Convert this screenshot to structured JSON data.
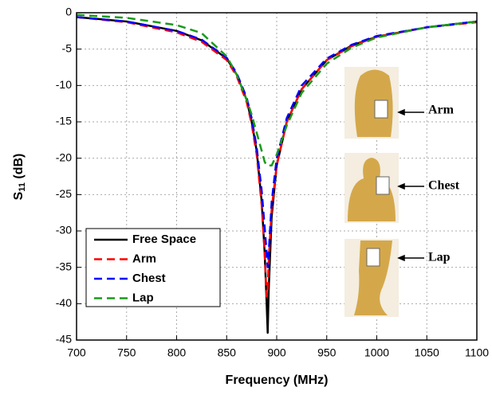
{
  "chart_data": {
    "type": "line",
    "xlabel": "Frequency (MHz)",
    "ylabel": [
      "S",
      "11",
      " (dB)"
    ],
    "x": [
      700,
      750,
      800,
      825,
      850,
      860,
      870,
      875,
      880,
      885,
      888,
      890,
      891,
      892,
      895,
      900,
      910,
      925,
      950,
      975,
      1000,
      1050,
      1100
    ],
    "series": [
      {
        "name": "Free Space",
        "color": "#000000",
        "style": "solid",
        "values": [
          -0.6,
          -1.2,
          -2.5,
          -3.8,
          -6.3,
          -8.5,
          -12,
          -15,
          -19,
          -26,
          -33,
          -40,
          -44,
          -38,
          -28,
          -21,
          -15,
          -10.5,
          -6.5,
          -4.5,
          -3.3,
          -2,
          -1.2
        ]
      },
      {
        "name": "Arm",
        "color": "#ff0000",
        "style": "dashed",
        "values": [
          -0.6,
          -1.3,
          -2.7,
          -4,
          -6.5,
          -8.7,
          -12.3,
          -15.3,
          -19.5,
          -26.5,
          -33,
          -39,
          -38,
          -34,
          -27,
          -21,
          -15,
          -10.5,
          -6.5,
          -4.6,
          -3.3,
          -2,
          -1.3
        ]
      },
      {
        "name": "Chest",
        "color": "#0000ff",
        "style": "dashed",
        "values": [
          -0.6,
          -1.2,
          -2.5,
          -3.7,
          -6.2,
          -8.3,
          -11.7,
          -14.5,
          -18.5,
          -24.5,
          -29.5,
          -33,
          -35,
          -33,
          -26,
          -20,
          -14.5,
          -10,
          -6.3,
          -4.4,
          -3.2,
          -2,
          -1.2
        ]
      },
      {
        "name": "Lap",
        "color": "#1a9a1a",
        "style": "dashed",
        "values": [
          -0.3,
          -0.7,
          -1.7,
          -2.8,
          -6,
          -8.5,
          -12,
          -14,
          -16.5,
          -19,
          -20.5,
          -21,
          -21,
          -21,
          -21,
          -19.5,
          -15.5,
          -11,
          -7,
          -4.8,
          -3.4,
          -2,
          -1.2
        ]
      }
    ],
    "xlim": [
      700,
      1100
    ],
    "xticks": [
      700,
      750,
      800,
      850,
      900,
      950,
      1000,
      1050,
      1100
    ],
    "ylim": [
      -45,
      0
    ],
    "yticks": [
      0,
      -5,
      -10,
      -15,
      -20,
      -25,
      -30,
      -35,
      -40,
      -45
    ],
    "grid": true,
    "legend": "lower left",
    "annotations": [
      "Arm",
      "Chest",
      "Lap"
    ]
  }
}
